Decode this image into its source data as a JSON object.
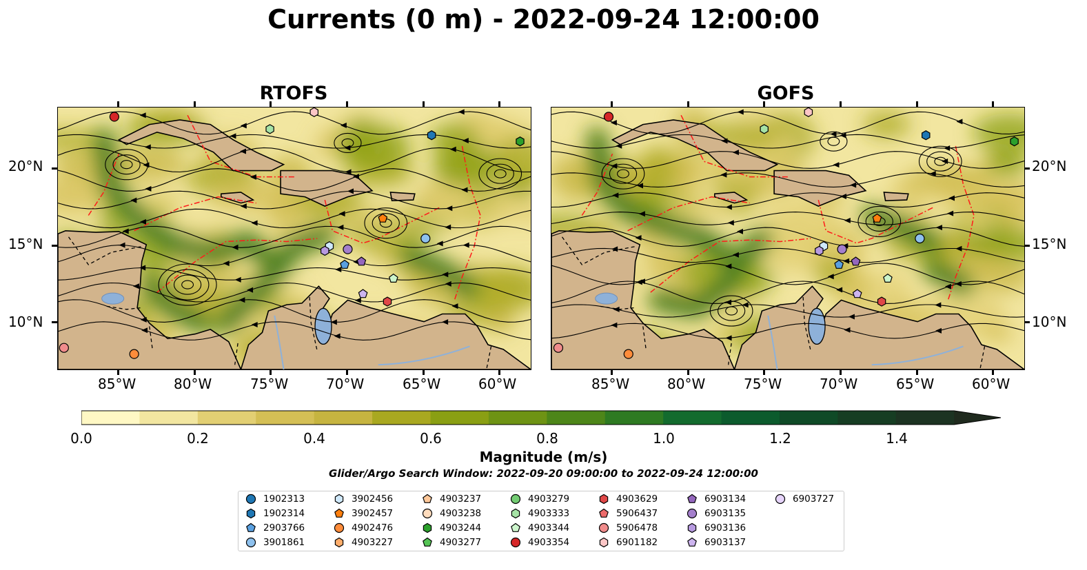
{
  "title": "Currents (0 m) - 2022-09-24 12:00:00",
  "panels": [
    {
      "title": "RTOFS"
    },
    {
      "title": "GOFS"
    }
  ],
  "axes": {
    "lon_ticks": [
      "85°W",
      "80°W",
      "75°W",
      "70°W",
      "65°W",
      "60°W"
    ],
    "lat_ticks": [
      "20°N",
      "15°N",
      "10°N"
    ],
    "lon_range": [
      -89,
      -58
    ],
    "lat_range": [
      7,
      24
    ]
  },
  "colorbar": {
    "label": "Magnitude (m/s)",
    "ticks": [
      "0.0",
      "0.2",
      "0.4",
      "0.6",
      "0.8",
      "1.0",
      "1.2",
      "1.4"
    ],
    "range": [
      0,
      1.5
    ],
    "extend": "max",
    "colors": [
      "#fff8c4",
      "#f2e6a0",
      "#e2cf73",
      "#d4bf55",
      "#c6b440",
      "#a9a820",
      "#8a9f13",
      "#6e9314",
      "#4d8619",
      "#2e7a22",
      "#136b2e",
      "#0c5b2d",
      "#0f4a27",
      "#163d23",
      "#1c3322",
      "#1f2a1e"
    ]
  },
  "search_window": "Glider/Argo Search Window: 2022-09-20 09:00:00 to 2022-09-24 12:00:00",
  "legend": [
    {
      "id": "1902313",
      "color": "#1f77b4",
      "marker": "circle"
    },
    {
      "id": "1902314",
      "color": "#1f77b4",
      "marker": "hexagon"
    },
    {
      "id": "2903766",
      "color": "#5aa0e0",
      "marker": "pentagon"
    },
    {
      "id": "3901861",
      "color": "#8ec1ee",
      "marker": "circle"
    },
    {
      "id": "3902456",
      "color": "#cfe8fb",
      "marker": "hexagon"
    },
    {
      "id": "3902457",
      "color": "#ff7f0e",
      "marker": "pentagon"
    },
    {
      "id": "4902476",
      "color": "#ff8c3a",
      "marker": "circle"
    },
    {
      "id": "4903227",
      "color": "#ffad6b",
      "marker": "hexagon"
    },
    {
      "id": "4903237",
      "color": "#ffc89a",
      "marker": "pentagon"
    },
    {
      "id": "4903238",
      "color": "#ffdcbd",
      "marker": "circle"
    },
    {
      "id": "4903244",
      "color": "#2ca02c",
      "marker": "hexagon"
    },
    {
      "id": "4903277",
      "color": "#55c455",
      "marker": "pentagon"
    },
    {
      "id": "4903279",
      "color": "#73cc73",
      "marker": "circle"
    },
    {
      "id": "4903333",
      "color": "#a6e3a6",
      "marker": "hexagon"
    },
    {
      "id": "4903344",
      "color": "#ccf5cc",
      "marker": "pentagon"
    },
    {
      "id": "4903354",
      "color": "#d62728",
      "marker": "circle"
    },
    {
      "id": "4903629",
      "color": "#e04848",
      "marker": "hexagon"
    },
    {
      "id": "5906437",
      "color": "#ec6b6b",
      "marker": "pentagon"
    },
    {
      "id": "5906478",
      "color": "#f08c8c",
      "marker": "circle"
    },
    {
      "id": "6901182",
      "color": "#fcc6c6",
      "marker": "hexagon"
    },
    {
      "id": "6903134",
      "color": "#9467bd",
      "marker": "pentagon"
    },
    {
      "id": "6903135",
      "color": "#a47fcc",
      "marker": "circle"
    },
    {
      "id": "6903136",
      "color": "#b79ae0",
      "marker": "hexagon"
    },
    {
      "id": "6903137",
      "color": "#cdb5ef",
      "marker": "pentagon"
    },
    {
      "id": "6903727",
      "color": "#e6d4fa",
      "marker": "circle"
    }
  ],
  "float_positions": [
    {
      "id": "4903354",
      "lon": -85.3,
      "lat": 23.4
    },
    {
      "id": "6901182",
      "lon": -72.2,
      "lat": 23.7
    },
    {
      "id": "4903333",
      "lon": -75.1,
      "lat": 22.6
    },
    {
      "id": "1902314",
      "lon": -64.5,
      "lat": 22.2
    },
    {
      "id": "4903244",
      "lon": -58.7,
      "lat": 21.8
    },
    {
      "id": "3902457",
      "lon": -67.7,
      "lat": 16.8
    },
    {
      "id": "3901861",
      "lon": -64.9,
      "lat": 15.5
    },
    {
      "id": "3902456",
      "lon": -71.2,
      "lat": 15.0
    },
    {
      "id": "6903136",
      "lon": -71.5,
      "lat": 14.7
    },
    {
      "id": "6903135",
      "lon": -70.0,
      "lat": 14.8
    },
    {
      "id": "2903766",
      "lon": -70.2,
      "lat": 13.8
    },
    {
      "id": "6903134",
      "lon": -69.1,
      "lat": 14.0
    },
    {
      "id": "4903344",
      "lon": -67.0,
      "lat": 12.9
    },
    {
      "id": "6903137",
      "lon": -69.0,
      "lat": 11.9
    },
    {
      "id": "4903629",
      "lon": -67.4,
      "lat": 11.4
    },
    {
      "id": "5906478",
      "lon": -88.6,
      "lat": 8.4
    },
    {
      "id": "4902476",
      "lon": -84.0,
      "lat": 8.0
    }
  ]
}
